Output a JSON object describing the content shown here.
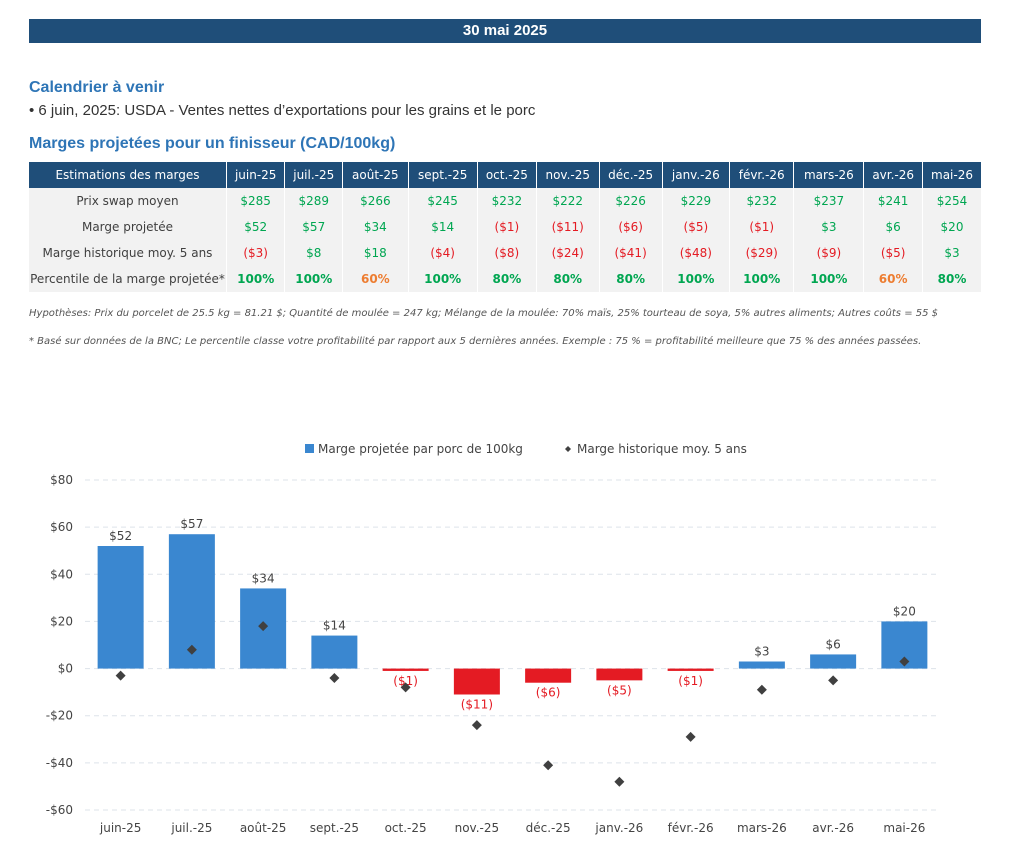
{
  "header": {
    "date": "30 mai 2025"
  },
  "calendar": {
    "title": "Calendrier à venir",
    "event": "• 6 juin, 2025: USDA - Ventes nettes d’exportations pour les grains et le porc"
  },
  "margins_table": {
    "title": "Marges projetées pour un finisseur (CAD/100kg)",
    "corner_label": "Estimations des marges",
    "months": [
      "juin-25",
      "juil.-25",
      "août-25",
      "sept.-25",
      "oct.-25",
      "nov.-25",
      "déc.-25",
      "janv.-26",
      "févr.-26",
      "mars-26",
      "avr.-26",
      "mai-26"
    ],
    "rows": [
      {
        "label": "Prix swap moyen",
        "cells": [
          "$285",
          "$289",
          "$266",
          "$245",
          "$232",
          "$222",
          "$226",
          "$229",
          "$232",
          "$237",
          "$241",
          "$254"
        ],
        "classes": [
          "pos",
          "pos",
          "pos",
          "pos",
          "pos",
          "pos",
          "pos",
          "pos",
          "pos",
          "pos",
          "pos",
          "pos"
        ]
      },
      {
        "label": "Marge projetée",
        "cells": [
          "$52",
          "$57",
          "$34",
          "$14",
          "($1)",
          "($11)",
          "($6)",
          "($5)",
          "($1)",
          "$3",
          "$6",
          "$20"
        ],
        "classes": [
          "pos",
          "pos",
          "pos",
          "pos",
          "neg",
          "neg",
          "neg",
          "neg",
          "neg",
          "pos",
          "pos",
          "pos"
        ]
      },
      {
        "label": "Marge historique moy. 5 ans",
        "cells": [
          "($3)",
          "$8",
          "$18",
          "($4)",
          "($8)",
          "($24)",
          "($41)",
          "($48)",
          "($29)",
          "($9)",
          "($5)",
          "$3"
        ],
        "classes": [
          "neg",
          "pos",
          "pos",
          "neg",
          "neg",
          "neg",
          "neg",
          "neg",
          "neg",
          "neg",
          "neg",
          "pos"
        ]
      },
      {
        "label": "Percentile de la marge projetée*",
        "cells": [
          "100%",
          "100%",
          "60%",
          "100%",
          "80%",
          "80%",
          "80%",
          "100%",
          "100%",
          "100%",
          "60%",
          "80%"
        ],
        "classes": [
          "pct-high",
          "pct-high",
          "pct-mid",
          "pct-high",
          "pct-high",
          "pct-high",
          "pct-high",
          "pct-high",
          "pct-high",
          "pct-high",
          "pct-mid",
          "pct-high"
        ]
      }
    ]
  },
  "notes": {
    "hypotheses": "Hypothèses: Prix du porcelet de 25.5 kg = 81.21 $; Quantité de moulée = 247 kg; Mélange de la moulée: 70% maïs, 25% tourteau de soya, 5% autres aliments; Autres coûts = 55 $",
    "footnote": "* Basé sur données de la BNC; Le percentile classe votre profitabilité par rapport aux 5 dernières années. Exemple : 75 % = profitabilité meilleure que 75 % des années passées."
  },
  "chart_data": {
    "type": "bar",
    "categories": [
      "juin-25",
      "juil.-25",
      "août-25",
      "sept.-25",
      "oct.-25",
      "nov.-25",
      "déc.-25",
      "janv.-26",
      "févr.-26",
      "mars-26",
      "avr.-26",
      "mai-26"
    ],
    "series": [
      {
        "name": "Marge projetée par porc de 100kg",
        "type": "bar",
        "values": [
          52,
          57,
          34,
          14,
          -1,
          -11,
          -6,
          -5,
          -1,
          3,
          6,
          20
        ],
        "labels": [
          "$52",
          "$57",
          "$34",
          "$14",
          "($1)",
          "($11)",
          "($6)",
          "($5)",
          "($1)",
          "$3",
          "$6",
          "$20"
        ],
        "color_positive": "#3a87d0",
        "color_negative": "#e41b23"
      },
      {
        "name": "Marge historique moy. 5 ans",
        "type": "scatter",
        "values": [
          -3,
          8,
          18,
          -4,
          -8,
          -24,
          -41,
          -48,
          -29,
          -9,
          -5,
          3
        ],
        "color": "#404040"
      }
    ],
    "ylim": [
      -60,
      80
    ],
    "yticks": [
      -60,
      -40,
      -20,
      0,
      20,
      40,
      60,
      80
    ],
    "ytick_labels": [
      "-$60",
      "-$40",
      "-$20",
      "$0",
      "$20",
      "$40",
      "$60",
      "$80"
    ],
    "grid": true,
    "legend_position": "top"
  }
}
